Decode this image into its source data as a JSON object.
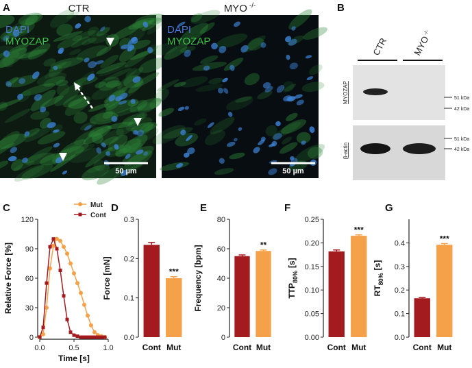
{
  "panel_a": {
    "label": "A",
    "images": [
      {
        "title": "CTR",
        "stains": [
          "DAPI",
          "MYOZAP"
        ],
        "scale_bar": "50 µm"
      },
      {
        "title": "MYO",
        "title_sup": "-/-",
        "stains": [
          "DAPI",
          "MYOZAP"
        ],
        "scale_bar": "50 µm"
      }
    ]
  },
  "panel_b": {
    "label": "B",
    "lanes": [
      {
        "name": "CTR"
      },
      {
        "name": "MYO",
        "sup": "-/-"
      }
    ],
    "blots": [
      {
        "name": "MYOZAP",
        "markers": [
          "51 kDa",
          "42 kDa"
        ]
      },
      {
        "name": "β-actin",
        "markers": [
          "51 kDa",
          "42 kDa"
        ]
      }
    ]
  },
  "chart_data": [
    {
      "type": "line",
      "panel": "C",
      "y_label": "Relative Force [%]",
      "x_label": "Time [s]",
      "x": [
        0,
        0.05,
        0.1,
        0.15,
        0.2,
        0.25,
        0.3,
        0.35,
        0.4,
        0.45,
        0.5,
        0.55,
        0.6,
        0.65,
        0.7,
        0.75,
        0.8,
        0.85,
        0.9,
        0.95
      ],
      "series": [
        {
          "name": "Mut",
          "color": "#f5a14a",
          "marker": "circle",
          "values": [
            0,
            3,
            30,
            70,
            93,
            100,
            98,
            92,
            85,
            75,
            65,
            55,
            45,
            33,
            22,
            12,
            5,
            2,
            1,
            0
          ]
        },
        {
          "name": "Cont",
          "color": "#a31b1f",
          "marker": "square",
          "values": [
            0,
            10,
            55,
            92,
            100,
            90,
            68,
            42,
            18,
            5,
            2,
            1,
            0,
            0,
            0,
            0,
            0,
            0,
            0,
            0
          ]
        }
      ],
      "xlim": [
        0,
        1
      ],
      "xticks": [
        {
          "value": 0,
          "label": "0.0"
        },
        0.5,
        {
          "value": 1,
          "label": "1.0"
        }
      ],
      "ylim": [
        0,
        120
      ],
      "yticks": [
        0,
        30,
        60,
        90,
        120
      ],
      "legend": "upper right"
    },
    {
      "type": "bar",
      "panel": "D",
      "y_label": "Force [mN]",
      "categories": [
        "Cont",
        "Mut"
      ],
      "values": [
        0.235,
        0.15
      ],
      "errors": [
        0.006,
        0.004
      ],
      "colors": [
        "#a31b1f",
        "#f5a14a"
      ],
      "annotation": "***",
      "ylim": [
        0,
        0.3
      ],
      "yticks": [
        {
          "value": 0,
          "label": "0.0"
        },
        0.1,
        0.2,
        0.3
      ]
    },
    {
      "type": "bar",
      "panel": "E",
      "y_label": "Frequency [bpm]",
      "categories": [
        "Cont",
        "Mut"
      ],
      "values": [
        55,
        58.5
      ],
      "errors": [
        0.8,
        0.7
      ],
      "colors": [
        "#a31b1f",
        "#f5a14a"
      ],
      "annotation": "**",
      "ylim": [
        0,
        80
      ],
      "yticks": [
        0,
        20,
        40,
        60,
        80
      ]
    },
    {
      "type": "bar",
      "panel": "F",
      "y_label": {
        "text": "TTP",
        "sub": "80%",
        "unit": "[s]"
      },
      "categories": [
        "Cont",
        "Mut"
      ],
      "values": [
        0.182,
        0.215
      ],
      "errors": [
        0.003,
        0.002
      ],
      "colors": [
        "#a31b1f",
        "#f5a14a"
      ],
      "annotation": "***",
      "ylim": [
        0,
        0.25
      ],
      "yticks": [
        {
          "value": 0,
          "label": "0.00"
        },
        0.05,
        {
          "value": 0.1,
          "label": "0.10"
        },
        0.15,
        {
          "value": 0.2,
          "label": "0.20"
        },
        0.25
      ]
    },
    {
      "type": "bar",
      "panel": "G",
      "y_label": {
        "text": "RT",
        "sub": "80%",
        "unit": "[s]"
      },
      "categories": [
        "Cont",
        "Mut"
      ],
      "values": [
        0.165,
        0.392
      ],
      "errors": [
        0.003,
        0.005
      ],
      "colors": [
        "#a31b1f",
        "#f5a14a"
      ],
      "annotation": "***",
      "ylim": [
        0,
        0.5
      ],
      "yticks": [
        {
          "value": 0,
          "label": "0.0"
        },
        0.1,
        0.2,
        0.3,
        0.4
      ]
    }
  ]
}
